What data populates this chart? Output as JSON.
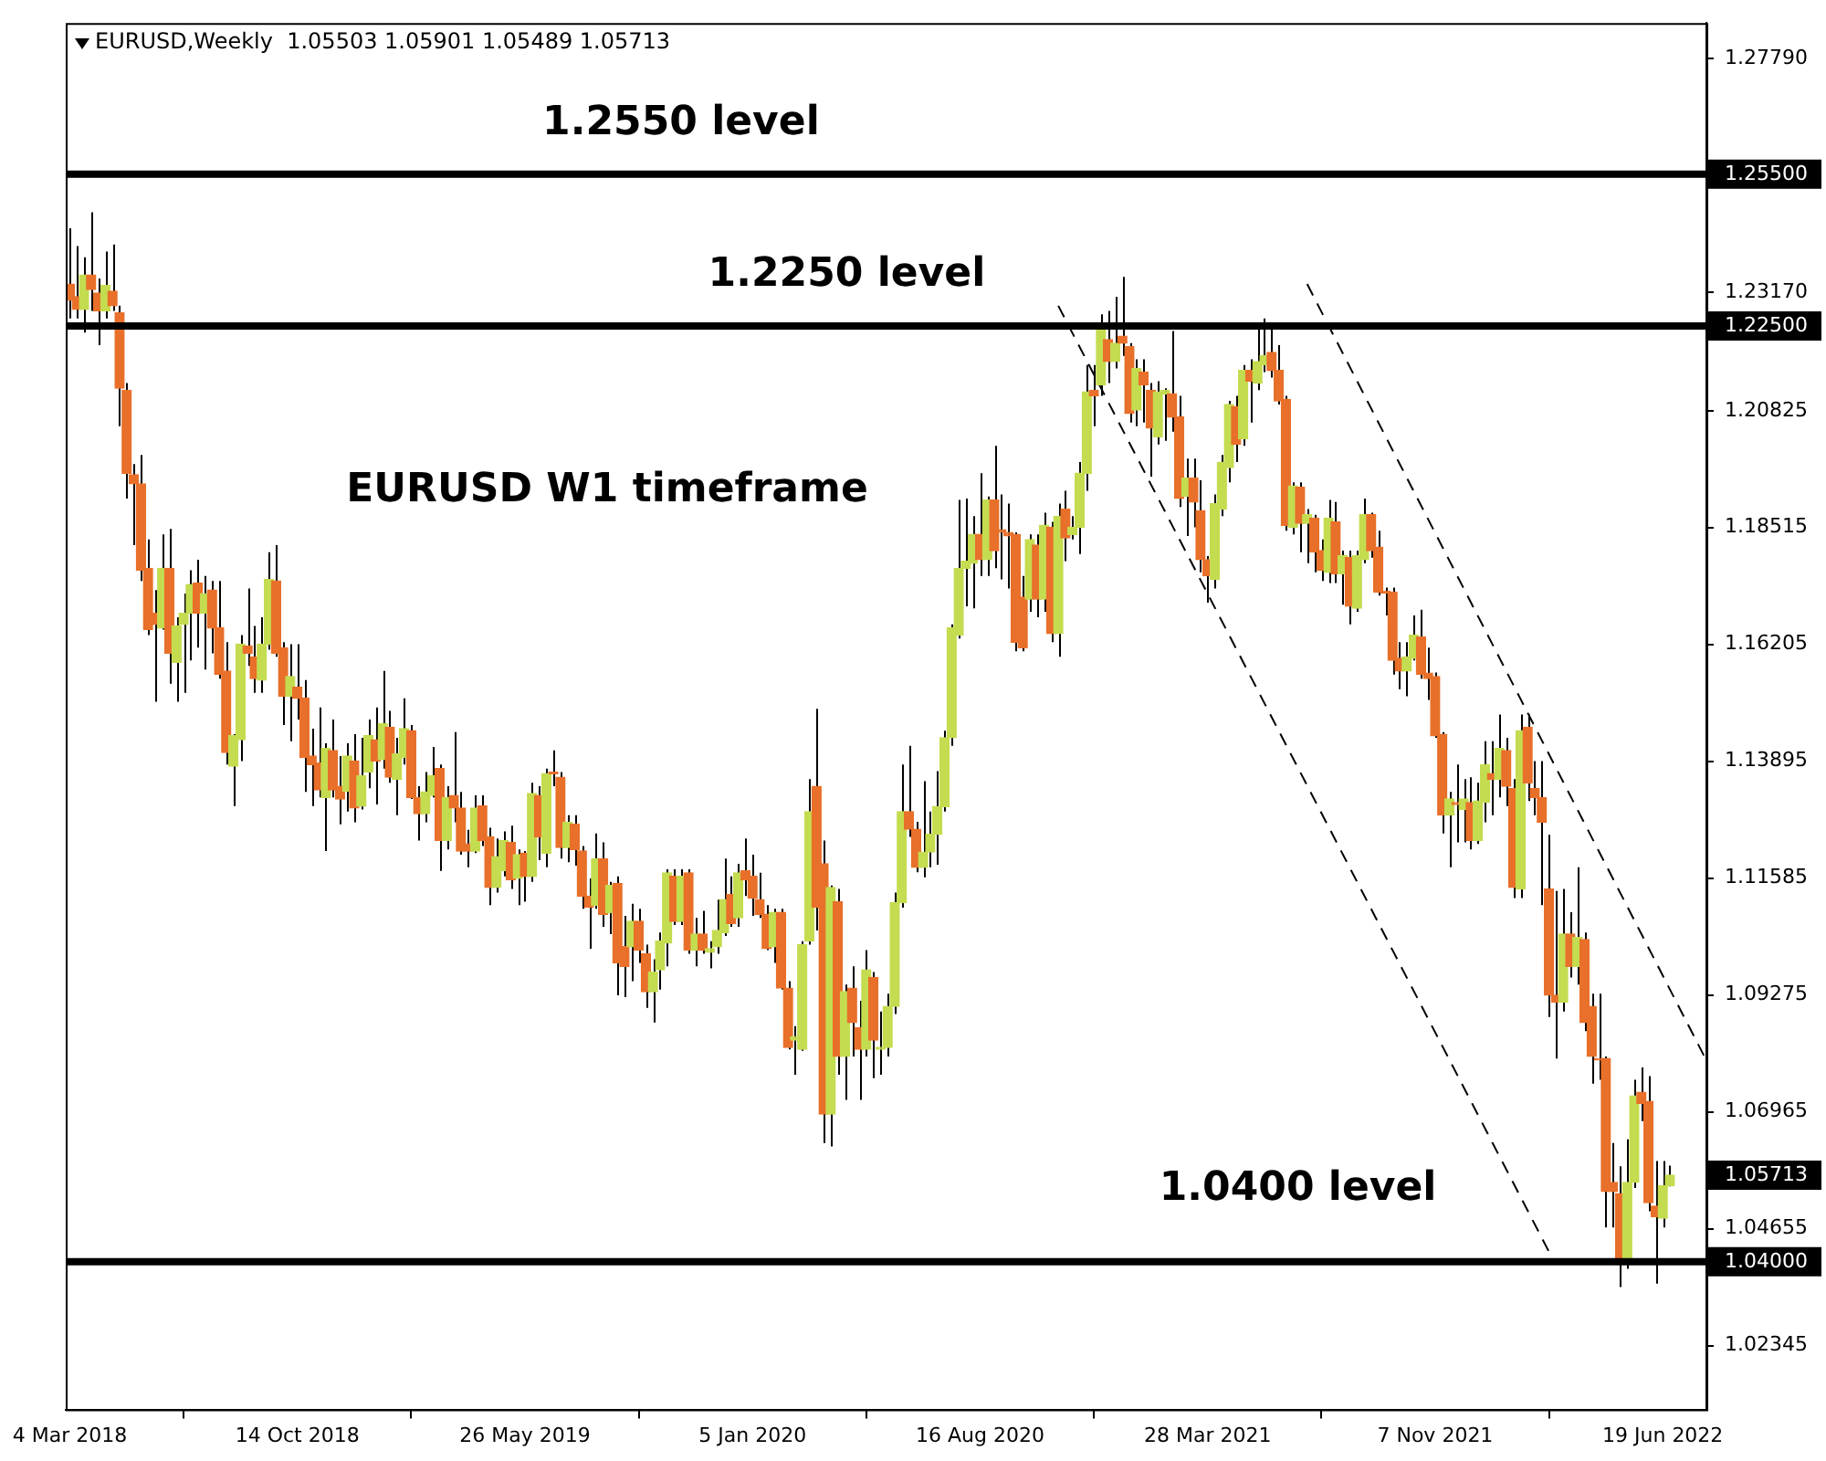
{
  "chart_data": {
    "type": "candlestick",
    "title": "EURUSD,Weekly  1.05503 1.05901 1.05489 1.05713",
    "x": [
      "2018-03-04",
      "2018-03-11",
      "2018-03-18",
      "2018-03-25",
      "2018-04-01",
      "2018-04-08",
      "2018-04-15",
      "2018-04-22",
      "2018-04-29",
      "2018-05-06",
      "2018-05-13",
      "2018-05-20",
      "2018-05-27",
      "2018-06-03",
      "2018-06-10",
      "2018-06-17",
      "2018-06-24",
      "2018-07-01",
      "2018-07-08",
      "2018-07-15",
      "2018-07-22",
      "2018-07-29",
      "2018-08-05",
      "2018-08-12",
      "2018-08-19",
      "2018-08-26",
      "2018-09-02",
      "2018-09-09",
      "2018-09-16",
      "2018-09-23",
      "2018-09-30",
      "2018-10-07",
      "2018-10-14",
      "2018-10-21",
      "2018-10-28",
      "2018-11-04",
      "2018-11-11",
      "2018-11-18",
      "2018-11-25",
      "2018-12-02",
      "2018-12-09",
      "2018-12-16",
      "2018-12-23",
      "2018-12-30",
      "2019-01-06",
      "2019-01-13",
      "2019-01-20",
      "2019-01-27",
      "2019-02-03",
      "2019-02-10",
      "2019-02-17",
      "2019-02-24",
      "2019-03-03",
      "2019-03-10",
      "2019-03-17",
      "2019-03-24",
      "2019-03-31",
      "2019-04-07",
      "2019-04-14",
      "2019-04-21",
      "2019-04-28",
      "2019-05-05",
      "2019-05-12",
      "2019-05-19",
      "2019-05-26",
      "2019-06-02",
      "2019-06-09",
      "2019-06-16",
      "2019-06-23",
      "2019-06-30",
      "2019-07-07",
      "2019-07-14",
      "2019-07-21",
      "2019-07-28",
      "2019-08-04",
      "2019-08-11",
      "2019-08-18",
      "2019-08-25",
      "2019-09-01",
      "2019-09-08",
      "2019-09-15",
      "2019-09-22",
      "2019-09-29",
      "2019-10-06",
      "2019-10-13",
      "2019-10-20",
      "2019-10-27",
      "2019-11-03",
      "2019-11-10",
      "2019-11-17",
      "2019-11-24",
      "2019-12-01",
      "2019-12-08",
      "2019-12-15",
      "2019-12-22",
      "2019-12-29",
      "2020-01-05",
      "2020-01-12",
      "2020-01-19",
      "2020-01-26",
      "2020-02-02",
      "2020-02-09",
      "2020-02-16",
      "2020-02-23",
      "2020-03-01",
      "2020-03-08",
      "2020-03-15",
      "2020-03-22",
      "2020-03-29",
      "2020-04-05",
      "2020-04-12",
      "2020-04-19",
      "2020-04-26",
      "2020-05-03",
      "2020-05-10",
      "2020-05-17",
      "2020-05-24",
      "2020-05-31",
      "2020-06-07",
      "2020-06-14",
      "2020-06-21",
      "2020-06-28",
      "2020-07-05",
      "2020-07-12",
      "2020-07-19",
      "2020-07-26",
      "2020-08-02",
      "2020-08-09",
      "2020-08-16",
      "2020-08-23",
      "2020-08-30",
      "2020-09-06",
      "2020-09-13",
      "2020-09-20",
      "2020-09-27",
      "2020-10-04",
      "2020-10-11",
      "2020-10-18",
      "2020-10-25",
      "2020-11-01",
      "2020-11-08",
      "2020-11-15",
      "2020-11-22",
      "2020-11-29",
      "2020-12-06",
      "2020-12-13",
      "2020-12-20",
      "2020-12-27",
      "2021-01-03",
      "2021-01-10",
      "2021-01-17",
      "2021-01-24",
      "2021-01-31",
      "2021-02-07",
      "2021-02-14",
      "2021-02-21",
      "2021-02-28",
      "2021-03-07",
      "2021-03-14",
      "2021-03-21",
      "2021-03-28",
      "2021-04-04",
      "2021-04-11",
      "2021-04-18",
      "2021-04-25",
      "2021-05-02",
      "2021-05-09",
      "2021-05-16",
      "2021-05-23",
      "2021-05-30",
      "2021-06-06",
      "2021-06-13",
      "2021-06-20",
      "2021-06-27",
      "2021-07-04",
      "2021-07-11",
      "2021-07-18",
      "2021-07-25",
      "2021-08-01",
      "2021-08-08",
      "2021-08-15",
      "2021-08-22",
      "2021-08-29",
      "2021-09-05",
      "2021-09-12",
      "2021-09-19",
      "2021-09-26",
      "2021-10-03",
      "2021-10-10",
      "2021-10-17",
      "2021-10-24",
      "2021-10-31",
      "2021-11-07",
      "2021-11-14",
      "2021-11-21",
      "2021-11-28",
      "2021-12-05",
      "2021-12-12",
      "2021-12-19",
      "2021-12-26",
      "2022-01-02",
      "2022-01-09",
      "2022-01-16",
      "2022-01-23",
      "2022-01-30",
      "2022-02-06",
      "2022-02-13",
      "2022-02-20",
      "2022-02-27",
      "2022-03-06",
      "2022-03-13",
      "2022-03-20",
      "2022-03-27",
      "2022-04-03",
      "2022-04-10",
      "2022-04-17",
      "2022-04-24",
      "2022-05-01",
      "2022-05-08",
      "2022-05-15",
      "2022-05-22",
      "2022-05-29",
      "2022-06-05",
      "2022-06-12",
      "2022-06-19",
      "2022-06-26"
    ],
    "ohlc": [
      [
        1.2333,
        1.2443,
        1.2265,
        1.2301
      ],
      [
        1.2308,
        1.2408,
        1.2265,
        1.2283
      ],
      [
        1.2283,
        1.2386,
        1.2237,
        1.2351
      ],
      [
        1.2351,
        1.2475,
        1.228,
        1.2322
      ],
      [
        1.2315,
        1.2344,
        1.2212,
        1.228
      ],
      [
        1.228,
        1.2397,
        1.2265,
        1.233
      ],
      [
        1.2319,
        1.2411,
        1.228,
        1.229
      ],
      [
        1.2276,
        1.229,
        1.2052,
        1.2127
      ],
      [
        1.2123,
        1.2137,
        1.1909,
        1.1959
      ],
      [
        1.1956,
        1.1977,
        1.1817,
        1.1938
      ],
      [
        1.1938,
        1.1995,
        1.1746,
        1.1767
      ],
      [
        1.1771,
        1.1828,
        1.1639,
        1.165
      ],
      [
        1.1682,
        1.1728,
        1.1507,
        1.166
      ],
      [
        1.1653,
        1.1838,
        1.165,
        1.1771
      ],
      [
        1.1771,
        1.1849,
        1.1543,
        1.1603
      ],
      [
        1.1585,
        1.1674,
        1.1507,
        1.1657
      ],
      [
        1.166,
        1.1721,
        1.1525,
        1.1682
      ],
      [
        1.1682,
        1.1767,
        1.1589,
        1.1739
      ],
      [
        1.1742,
        1.1788,
        1.1614,
        1.1682
      ],
      [
        1.1682,
        1.1756,
        1.1571,
        1.1721
      ],
      [
        1.1728,
        1.1746,
        1.1603,
        1.1653
      ],
      [
        1.1653,
        1.1746,
        1.1553,
        1.1561
      ],
      [
        1.1568,
        1.1625,
        1.1383,
        1.1407
      ],
      [
        1.138,
        1.1443,
        1.1301,
        1.144
      ],
      [
        1.1432,
        1.1639,
        1.139,
        1.1621
      ],
      [
        1.1617,
        1.1731,
        1.1578,
        1.1603
      ],
      [
        1.1596,
        1.1657,
        1.1525,
        1.1553
      ],
      [
        1.155,
        1.1674,
        1.1525,
        1.1621
      ],
      [
        1.1621,
        1.1803,
        1.161,
        1.1749
      ],
      [
        1.1746,
        1.1817,
        1.1596,
        1.1603
      ],
      [
        1.1614,
        1.1625,
        1.1461,
        1.1518
      ],
      [
        1.1518,
        1.1621,
        1.1429,
        1.1557
      ],
      [
        1.1536,
        1.1621,
        1.1472,
        1.1514
      ],
      [
        1.1514,
        1.155,
        1.1329,
        1.1397
      ],
      [
        1.14,
        1.1454,
        1.1301,
        1.1383
      ],
      [
        1.1386,
        1.1496,
        1.1318,
        1.1333
      ],
      [
        1.1318,
        1.1425,
        1.1212,
        1.1415
      ],
      [
        1.1411,
        1.1472,
        1.1318,
        1.1333
      ],
      [
        1.134,
        1.14,
        1.1265,
        1.1315
      ],
      [
        1.133,
        1.1425,
        1.129,
        1.14
      ],
      [
        1.139,
        1.1443,
        1.1269,
        1.1297
      ],
      [
        1.1301,
        1.1436,
        1.1294,
        1.1361
      ],
      [
        1.1368,
        1.1472,
        1.1336,
        1.144
      ],
      [
        1.1432,
        1.1496,
        1.1304,
        1.139
      ],
      [
        1.1393,
        1.1568,
        1.1375,
        1.1464
      ],
      [
        1.1457,
        1.1489,
        1.1347,
        1.1358
      ],
      [
        1.1354,
        1.1436,
        1.1283,
        1.1404
      ],
      [
        1.1397,
        1.1514,
        1.1383,
        1.1454
      ],
      [
        1.145,
        1.1461,
        1.1315,
        1.1318
      ],
      [
        1.1318,
        1.134,
        1.1233,
        1.1286
      ],
      [
        1.1286,
        1.1368,
        1.1269,
        1.1329
      ],
      [
        1.1322,
        1.1418,
        1.1318,
        1.1361
      ],
      [
        1.1375,
        1.1383,
        1.1173,
        1.1233
      ],
      [
        1.1233,
        1.134,
        1.1215,
        1.1318
      ],
      [
        1.1322,
        1.1447,
        1.1269,
        1.1297
      ],
      [
        1.1297,
        1.1329,
        1.1205,
        1.1212
      ],
      [
        1.1226,
        1.1254,
        1.118,
        1.1212
      ],
      [
        1.1212,
        1.1322,
        1.1208,
        1.1297
      ],
      [
        1.1301,
        1.1322,
        1.1222,
        1.1233
      ],
      [
        1.124,
        1.1258,
        1.1105,
        1.114
      ],
      [
        1.114,
        1.1237,
        1.113,
        1.1201
      ],
      [
        1.1173,
        1.1251,
        1.1162,
        1.1233
      ],
      [
        1.1229,
        1.1262,
        1.1137,
        1.1155
      ],
      [
        1.1158,
        1.1215,
        1.1105,
        1.1205
      ],
      [
        1.1208,
        1.1212,
        1.1112,
        1.1162
      ],
      [
        1.1162,
        1.1347,
        1.1151,
        1.1326
      ],
      [
        1.1322,
        1.134,
        1.1194,
        1.124
      ],
      [
        1.1208,
        1.1375,
        1.118,
        1.1365
      ],
      [
        1.1368,
        1.1411,
        1.134,
        1.1365
      ],
      [
        1.1358,
        1.1368,
        1.1197,
        1.1219
      ],
      [
        1.1219,
        1.1283,
        1.119,
        1.1269
      ],
      [
        1.1265,
        1.1283,
        1.1183,
        1.1215
      ],
      [
        1.1212,
        1.1222,
        1.1098,
        1.1123
      ],
      [
        1.1123,
        1.1158,
        1.1019,
        1.1101
      ],
      [
        1.1105,
        1.1247,
        1.1098,
        1.1197
      ],
      [
        1.1197,
        1.1229,
        1.1062,
        1.1087
      ],
      [
        1.109,
        1.1151,
        1.1048,
        1.1144
      ],
      [
        1.1148,
        1.1162,
        1.0927,
        1.0991
      ],
      [
        1.1023,
        1.1084,
        1.0923,
        1.0984
      ],
      [
        1.1023,
        1.1108,
        1.0955,
        1.1073
      ],
      [
        1.1073,
        1.1098,
        1.0991,
        1.1016
      ],
      [
        1.1009,
        1.1027,
        1.0902,
        1.0934
      ],
      [
        1.0934,
        1.0998,
        1.0873,
        1.0973
      ],
      [
        1.0977,
        1.1051,
        1.0938,
        1.1034
      ],
      [
        1.103,
        1.1176,
        1.0984,
        1.1169
      ],
      [
        1.1162,
        1.1176,
        1.1066,
        1.1073
      ],
      [
        1.1073,
        1.1176,
        1.1066,
        1.1162
      ],
      [
        1.1169,
        1.1176,
        1.1009,
        1.1016
      ],
      [
        1.1016,
        1.108,
        1.0984,
        1.1048
      ],
      [
        1.1048,
        1.1094,
        1.1009,
        1.1016
      ],
      [
        1.1012,
        1.1034,
        1.098,
        1.1019
      ],
      [
        1.1023,
        1.1116,
        1.1009,
        1.1055
      ],
      [
        1.1051,
        1.1197,
        1.1044,
        1.1116
      ],
      [
        1.1126,
        1.1162,
        1.1062,
        1.1069
      ],
      [
        1.108,
        1.1187,
        1.1062,
        1.1169
      ],
      [
        1.1173,
        1.1237,
        1.1123,
        1.1155
      ],
      [
        1.1162,
        1.1205,
        1.1084,
        1.1119
      ],
      [
        1.1116,
        1.1169,
        1.108,
        1.1087
      ],
      [
        1.1087,
        1.1105,
        1.1016,
        1.1019
      ],
      [
        1.1023,
        1.1098,
        1.0991,
        1.1091
      ],
      [
        1.1091,
        1.1098,
        1.0938,
        1.0941
      ],
      [
        1.0941,
        1.0955,
        1.082,
        1.0824
      ],
      [
        1.0838,
        1.0866,
        1.077,
        1.0845
      ],
      [
        1.082,
        1.1034,
        1.0817,
        1.1027
      ],
      [
        1.1034,
        1.1354,
        1.1027,
        1.129
      ],
      [
        1.134,
        1.1493,
        1.1055,
        1.1101
      ],
      [
        1.1187,
        1.1233,
        1.0635,
        1.0692
      ],
      [
        1.0692,
        1.1144,
        1.0628,
        1.114
      ],
      [
        1.1112,
        1.1137,
        1.077,
        1.0806
      ],
      [
        1.0806,
        1.0948,
        1.072,
        1.0934
      ],
      [
        1.0941,
        1.0984,
        1.0806,
        1.0873
      ],
      [
        1.0863,
        1.0916,
        1.072,
        1.082
      ],
      [
        1.082,
        1.1016,
        1.0806,
        1.0977
      ],
      [
        1.0962,
        1.0973,
        1.0763,
        1.0838
      ],
      [
        1.082,
        1.0895,
        1.077,
        1.0824
      ],
      [
        1.0824,
        1.093,
        1.0806,
        1.0905
      ],
      [
        1.0905,
        1.113,
        1.089,
        1.111
      ],
      [
        1.111,
        1.1383,
        1.11,
        1.129
      ],
      [
        1.129,
        1.142,
        1.124,
        1.1255
      ],
      [
        1.1255,
        1.127,
        1.117,
        1.118
      ],
      [
        1.118,
        1.135,
        1.116,
        1.121
      ],
      [
        1.121,
        1.129,
        1.118,
        1.1245
      ],
      [
        1.1245,
        1.137,
        1.1185,
        1.13
      ],
      [
        1.13,
        1.145,
        1.129,
        1.1436
      ],
      [
        1.1436,
        1.166,
        1.142,
        1.1653
      ],
      [
        1.1639,
        1.1906,
        1.1632,
        1.1771
      ],
      [
        1.1771,
        1.1909,
        1.1696,
        1.1785
      ],
      [
        1.1781,
        1.1874,
        1.1692,
        1.1838
      ],
      [
        1.1838,
        1.1959,
        1.1756,
        1.1788
      ],
      [
        1.1788,
        1.1913,
        1.1756,
        1.1906
      ],
      [
        1.1906,
        1.2013,
        1.1771,
        1.1806
      ],
      [
        1.1847,
        1.1917,
        1.1749,
        1.1843
      ],
      [
        1.1842,
        1.1899,
        1.1731,
        1.1835
      ],
      [
        1.1838,
        1.1842,
        1.1607,
        1.1625
      ],
      [
        1.1714,
        1.1756,
        1.1607,
        1.1614
      ],
      [
        1.171,
        1.1838,
        1.1685,
        1.1828
      ],
      [
        1.1817,
        1.1838,
        1.1674,
        1.171
      ],
      [
        1.171,
        1.1881,
        1.1685,
        1.1856
      ],
      [
        1.1852,
        1.1863,
        1.1625,
        1.1642
      ],
      [
        1.1642,
        1.1899,
        1.1596,
        1.1874
      ],
      [
        1.1888,
        1.1924,
        1.1785,
        1.1831
      ],
      [
        1.1838,
        1.1874,
        1.1828,
        1.1852
      ],
      [
        1.1852,
        1.1981,
        1.1799,
        1.1959
      ],
      [
        1.1959,
        1.2173,
        1.1924,
        1.212
      ],
      [
        1.2123,
        1.2173,
        1.2052,
        1.2112
      ],
      [
        1.2134,
        1.2273,
        1.2112,
        1.2248
      ],
      [
        1.2223,
        1.228,
        1.2137,
        1.218
      ],
      [
        1.218,
        1.2308,
        1.2166,
        1.2216
      ],
      [
        1.223,
        1.2347,
        1.2191,
        1.2216
      ],
      [
        1.2209,
        1.2216,
        1.2059,
        1.2077
      ],
      [
        1.2084,
        1.2184,
        1.2052,
        1.2166
      ],
      [
        1.2159,
        1.2184,
        1.2059,
        1.2134
      ],
      [
        1.2123,
        1.2137,
        1.1952,
        1.2048
      ],
      [
        1.2031,
        1.2141,
        1.2016,
        1.212
      ],
      [
        1.2116,
        1.2127,
        1.2023,
        1.2123
      ],
      [
        1.2116,
        1.224,
        1.2041,
        1.207
      ],
      [
        1.207,
        1.2112,
        1.1892,
        1.1909
      ],
      [
        1.1913,
        1.1988,
        1.1835,
        1.1949
      ],
      [
        1.1949,
        1.1988,
        1.1852,
        1.1902
      ],
      [
        1.1885,
        1.1945,
        1.1763,
        1.1788
      ],
      [
        1.1788,
        1.1795,
        1.1703,
        1.1756
      ],
      [
        1.1749,
        1.1917,
        1.1731,
        1.1899
      ],
      [
        1.1888,
        1.1995,
        1.1874,
        1.1981
      ],
      [
        1.197,
        1.2102,
        1.1941,
        1.2095
      ],
      [
        1.2091,
        1.2112,
        1.1981,
        1.2016
      ],
      [
        1.2027,
        1.2173,
        1.2013,
        1.2162
      ],
      [
        1.2162,
        1.2184,
        1.2059,
        1.2141
      ],
      [
        1.2137,
        1.2255,
        1.2123,
        1.218
      ],
      [
        1.2173,
        1.2265,
        1.2159,
        1.2191
      ],
      [
        1.2198,
        1.2251,
        1.2148,
        1.2162
      ],
      [
        1.2162,
        1.2212,
        1.2095,
        1.2102
      ],
      [
        1.2105,
        1.2112,
        1.1845,
        1.1856
      ],
      [
        1.1852,
        1.1941,
        1.1838,
        1.1934
      ],
      [
        1.1931,
        1.1941,
        1.1803,
        1.186
      ],
      [
        1.186,
        1.1888,
        1.1781,
        1.1877
      ],
      [
        1.187,
        1.1877,
        1.1763,
        1.1803
      ],
      [
        1.1806,
        1.1828,
        1.1746,
        1.1767
      ],
      [
        1.1763,
        1.1906,
        1.1742,
        1.187
      ],
      [
        1.1863,
        1.1902,
        1.1742,
        1.176
      ],
      [
        1.176,
        1.1806,
        1.1699,
        1.1796
      ],
      [
        1.1792,
        1.1806,
        1.166,
        1.1696
      ],
      [
        1.1692,
        1.1806,
        1.1685,
        1.1796
      ],
      [
        1.1788,
        1.1909,
        1.1781,
        1.1877
      ],
      [
        1.1877,
        1.1881,
        1.1792,
        1.1806
      ],
      [
        1.1813,
        1.1845,
        1.1717,
        1.1724
      ],
      [
        1.1726,
        1.1733,
        1.1678,
        1.1722
      ],
      [
        1.1724,
        1.1733,
        1.1561,
        1.1589
      ],
      [
        1.1593,
        1.1625,
        1.1532,
        1.1568
      ],
      [
        1.1568,
        1.1625,
        1.1518,
        1.1596
      ],
      [
        1.1593,
        1.1678,
        1.1589,
        1.1639
      ],
      [
        1.1635,
        1.1689,
        1.1553,
        1.1561
      ],
      [
        1.1564,
        1.1614,
        1.1511,
        1.1553
      ],
      [
        1.1557,
        1.1565,
        1.1436,
        1.144
      ],
      [
        1.1443,
        1.1447,
        1.1247,
        1.1283
      ],
      [
        1.1283,
        1.1329,
        1.118,
        1.1315
      ],
      [
        1.1308,
        1.1383,
        1.1229,
        1.1304
      ],
      [
        1.1294,
        1.1354,
        1.1229,
        1.1315
      ],
      [
        1.1308,
        1.1358,
        1.1215,
        1.1233
      ],
      [
        1.1233,
        1.1347,
        1.1226,
        1.1311
      ],
      [
        1.1308,
        1.1429,
        1.1269,
        1.1383
      ],
      [
        1.1365,
        1.1429,
        1.1283,
        1.1354
      ],
      [
        1.1354,
        1.1482,
        1.1318,
        1.1415
      ],
      [
        1.1411,
        1.1436,
        1.1301,
        1.134
      ],
      [
        1.1336,
        1.1354,
        1.1119,
        1.114
      ],
      [
        1.1137,
        1.1482,
        1.1119,
        1.145
      ],
      [
        1.1457,
        1.1482,
        1.1311,
        1.1347
      ],
      [
        1.1336,
        1.139,
        1.1283,
        1.1318
      ],
      [
        1.1318,
        1.139,
        1.1105,
        1.1269
      ],
      [
        1.1137,
        1.1244,
        1.0884,
        1.0927
      ],
      [
        1.0927,
        1.1133,
        1.0802,
        1.0913
      ],
      [
        1.0913,
        1.1137,
        1.0895,
        1.1048
      ],
      [
        1.1048,
        1.1091,
        1.0962,
        1.0984
      ],
      [
        1.0984,
        1.118,
        1.0948,
        1.1041
      ],
      [
        1.1037,
        1.1051,
        1.0856,
        1.0873
      ],
      [
        1.0905,
        1.093,
        1.0752,
        1.0806
      ],
      [
        1.0802,
        1.093,
        1.076,
        1.0799
      ],
      [
        1.0802,
        1.0806,
        1.0468,
        1.0539
      ],
      [
        1.0557,
        1.0635,
        1.0468,
        1.0539
      ],
      [
        1.0535,
        1.0589,
        1.035,
        1.0396
      ],
      [
        1.0396,
        1.0642,
        1.0386,
        1.0557
      ],
      [
        1.0557,
        1.076,
        1.0546,
        1.0728
      ],
      [
        1.0735,
        1.0784,
        1.0678,
        1.0713
      ],
      [
        1.0717,
        1.0767,
        1.05,
        1.0517
      ],
      [
        1.051,
        1.0599,
        1.0357,
        1.0489
      ],
      [
        1.0486,
        1.0599,
        1.0468,
        1.055
      ],
      [
        1.05503,
        1.05901,
        1.05489,
        1.05713
      ]
    ],
    "colors": [
      "#e8702a",
      "#e8702a",
      "#c4dc50",
      "#e8702a",
      "#e8702a",
      "#c4dc50",
      "#e8702a",
      "#e8702a",
      "#e8702a",
      "#e8702a",
      "#e8702a",
      "#e8702a",
      "#e8702a",
      "#c4dc50",
      "#e8702a",
      "#c4dc50",
      "#c4dc50",
      "#c4dc50",
      "#e8702a",
      "#c4dc50",
      "#e8702a",
      "#e8702a",
      "#e8702a",
      "#c4dc50",
      "#c4dc50",
      "#e8702a",
      "#e8702a",
      "#c4dc50",
      "#c4dc50",
      "#e8702a",
      "#e8702a",
      "#c4dc50",
      "#e8702a",
      "#e8702a",
      "#e8702a",
      "#e8702a",
      "#c4dc50",
      "#e8702a",
      "#e8702a",
      "#c4dc50",
      "#e8702a",
      "#c4dc50",
      "#c4dc50",
      "#e8702a",
      "#c4dc50",
      "#e8702a",
      "#c4dc50",
      "#c4dc50",
      "#e8702a",
      "#e8702a",
      "#c4dc50",
      "#c4dc50",
      "#e8702a",
      "#c4dc50",
      "#e8702a",
      "#e8702a",
      "#e8702a",
      "#c4dc50",
      "#e8702a",
      "#e8702a",
      "#c4dc50",
      "#c4dc50",
      "#e8702a",
      "#c4dc50",
      "#e8702a",
      "#c4dc50",
      "#e8702a",
      "#c4dc50",
      "#e8702a",
      "#e8702a",
      "#c4dc50",
      "#e8702a",
      "#e8702a",
      "#e8702a",
      "#c4dc50",
      "#e8702a",
      "#c4dc50",
      "#e8702a",
      "#e8702a",
      "#c4dc50",
      "#e8702a",
      "#e8702a",
      "#c4dc50",
      "#c4dc50",
      "#c4dc50",
      "#e8702a",
      "#c4dc50",
      "#e8702a",
      "#c4dc50",
      "#e8702a",
      "#c4dc50",
      "#c4dc50",
      "#c4dc50",
      "#e8702a",
      "#c4dc50",
      "#e8702a",
      "#e8702a",
      "#e8702a",
      "#e8702a",
      "#c4dc50",
      "#e8702a",
      "#e8702a",
      "#c4dc50",
      "#c4dc50",
      "#c4dc50",
      "#e8702a",
      "#e8702a",
      "#c4dc50",
      "#e8702a",
      "#c4dc50",
      "#e8702a",
      "#e8702a",
      "#c4dc50",
      "#e8702a",
      "#c4dc50",
      "#c4dc50",
      "#c4dc50",
      "#c4dc50",
      "#e8702a",
      "#e8702a",
      "#c4dc50",
      "#c4dc50",
      "#c4dc50",
      "#c4dc50",
      "#c4dc50",
      "#c4dc50",
      "#c4dc50",
      "#c4dc50",
      "#e8702a",
      "#c4dc50",
      "#e8702a",
      "#e8702a",
      "#e8702a",
      "#e8702a",
      "#e8702a",
      "#c4dc50",
      "#e8702a",
      "#c4dc50",
      "#e8702a",
      "#c4dc50",
      "#e8702a",
      "#c4dc50",
      "#c4dc50",
      "#c4dc50",
      "#e8702a",
      "#c4dc50",
      "#e8702a",
      "#c4dc50",
      "#e8702a",
      "#e8702a",
      "#c4dc50",
      "#e8702a",
      "#e8702a",
      "#c4dc50",
      "#c4dc50",
      "#e8702a",
      "#e8702a",
      "#c4dc50",
      "#e8702a",
      "#e8702a",
      "#e8702a",
      "#c4dc50",
      "#c4dc50",
      "#c4dc50",
      "#e8702a",
      "#c4dc50",
      "#e8702a",
      "#c4dc50",
      "#c4dc50",
      "#e8702a",
      "#e8702a",
      "#e8702a",
      "#c4dc50",
      "#e8702a",
      "#c4dc50",
      "#e8702a",
      "#e8702a",
      "#c4dc50",
      "#e8702a",
      "#c4dc50",
      "#e8702a",
      "#c4dc50",
      "#c4dc50",
      "#e8702a",
      "#e8702a",
      "#e8702a",
      "#e8702a",
      "#e8702a",
      "#c4dc50",
      "#c4dc50",
      "#e8702a",
      "#e8702a",
      "#e8702a",
      "#e8702a",
      "#c4dc50",
      "#e8702a",
      "#c4dc50",
      "#e8702a",
      "#c4dc50",
      "#c4dc50",
      "#e8702a",
      "#c4dc50",
      "#e8702a",
      "#e8702a",
      "#c4dc50",
      "#e8702a",
      "#e8702a",
      "#e8702a",
      "#e8702a",
      "#e8702a",
      "#c4dc50",
      "#e8702a",
      "#c4dc50",
      "#e8702a",
      "#e8702a",
      "#e8702a",
      "#e8702a",
      "#e8702a",
      "#e8702a",
      "#c4dc50",
      "#c4dc50",
      "#e8702a",
      "#e8702a",
      "#e8702a",
      "#c4dc50",
      "#c4dc50"
    ],
    "series": [
      {
        "type": "line",
        "x": [
          "2020-11-01",
          "2022-02-27"
        ],
        "values": [
          1.229,
          1.042
        ],
        "color": "#000000",
        "line_style": "dashed"
      },
      {
        "type": "line",
        "x": [
          "2021-07-04",
          "2022-07-31"
        ],
        "values": [
          1.2333,
          1.0802
        ],
        "color": "#000000",
        "line_style": "dashed"
      }
    ],
    "xlim": [
      "2018-02-28",
      "2022-08-01"
    ],
    "xticks": [
      {
        "value": "2018-03-04",
        "label": "4 Mar 2018"
      },
      {
        "value": "2018-10-14",
        "label": "14 Oct 2018"
      },
      {
        "value": "2019-05-26",
        "label": "26 May 2019"
      },
      {
        "value": "2020-01-05",
        "label": "5 Jan 2020"
      },
      {
        "value": "2020-08-16",
        "label": "16 Aug 2020"
      },
      {
        "value": "2021-03-28",
        "label": "28 Mar 2021"
      },
      {
        "value": "2021-11-07",
        "label": "7 Nov 2021"
      },
      {
        "value": "2022-06-19",
        "label": "19 Jun 2022"
      }
    ],
    "ylim": [
      1.0108,
      1.2849
    ],
    "yticks": [
      1.02345,
      {
        "value": 1.04,
        "label": "1.04000"
      },
      1.04655,
      1.05713,
      1.06965,
      1.09275,
      1.11585,
      1.13895,
      1.16205,
      1.18515,
      1.20825,
      {
        "value": 1.225,
        "label": "1.22500"
      },
      {
        "value": 1.2317,
        "label": "1.23170"
      },
      {
        "value": 1.255,
        "label": "1.25500"
      },
      {
        "value": 1.2779,
        "label": "1.27790"
      }
    ],
    "ref_lines": [
      {
        "axis": "y",
        "value": 1.255,
        "label": "1.2550 level",
        "color": "#000000"
      },
      {
        "axis": "y",
        "value": 1.225,
        "label": "1.2250 level",
        "color": "#000000"
      },
      {
        "axis": "y",
        "value": 1.04,
        "label": "1.0400 level",
        "color": "#000000"
      }
    ],
    "annotations": [
      "EURUSD W1 timeframe"
    ]
  }
}
